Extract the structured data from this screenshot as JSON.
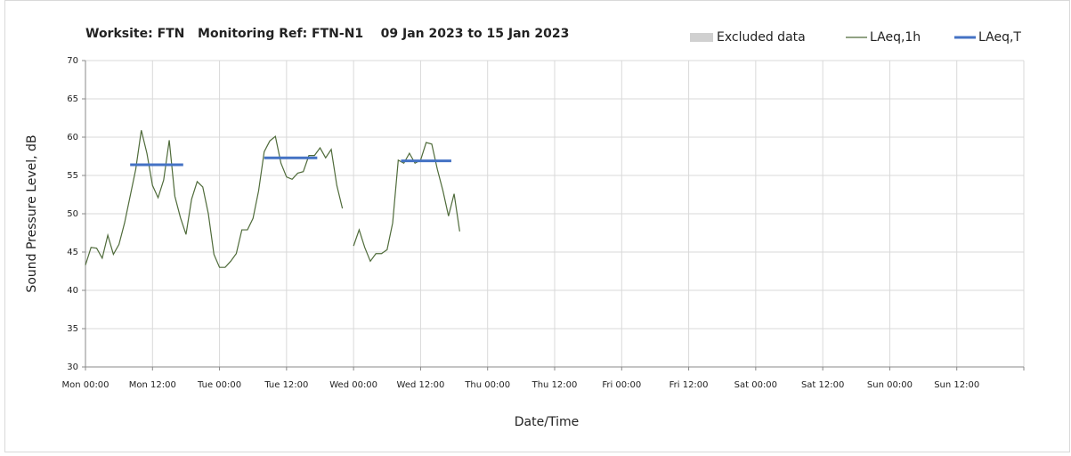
{
  "chart_data": {
    "type": "line",
    "title": "Worksite: FTN   Monitoring Ref: FTN-N1    09 Jan 2023 to 15 Jan 2023",
    "x_label": "Date/Time",
    "y_label": "Sound Pressure Level, dB",
    "xlim": [
      0,
      168
    ],
    "xticks": [
      {
        "value": 0,
        "label": "Mon 00:00"
      },
      {
        "value": 12,
        "label": "Mon 12:00"
      },
      {
        "value": 24,
        "label": "Tue 00:00"
      },
      {
        "value": 36,
        "label": "Tue 12:00"
      },
      {
        "value": 48,
        "label": "Wed 00:00"
      },
      {
        "value": 60,
        "label": "Wed 12:00"
      },
      {
        "value": 72,
        "label": "Thu 00:00"
      },
      {
        "value": 84,
        "label": "Thu 12:00"
      },
      {
        "value": 96,
        "label": "Fri 00:00"
      },
      {
        "value": 108,
        "label": "Fri 12:00"
      },
      {
        "value": 120,
        "label": "Sat 00:00"
      },
      {
        "value": 132,
        "label": "Sat 12:00"
      },
      {
        "value": 144,
        "label": "Sun 00:00"
      },
      {
        "value": 156,
        "label": "Sun 12:00"
      }
    ],
    "ylim": [
      30,
      70
    ],
    "yticks": [
      30,
      35,
      40,
      45,
      50,
      55,
      60,
      65,
      70
    ],
    "grid": true,
    "legend": "top-right",
    "excluded": {
      "name": "Excluded data",
      "color": "#d0d0d0"
    },
    "series": [
      {
        "name": "LAeq,1h",
        "color": "#4f6b3a",
        "x": [
          0,
          1,
          2,
          3,
          4,
          5,
          6,
          7,
          8,
          9,
          10,
          11,
          12,
          13,
          14,
          15,
          16,
          17,
          18,
          19,
          20,
          21,
          22,
          23,
          24,
          25,
          26,
          27,
          28,
          29,
          30,
          31,
          32,
          33,
          34,
          35,
          36,
          37,
          38,
          39,
          40,
          41,
          42,
          43,
          44,
          45,
          46,
          47,
          48,
          49,
          50,
          51,
          52,
          53,
          54,
          55,
          56,
          57,
          58,
          59,
          60,
          61,
          62,
          63,
          64,
          65,
          66,
          67
        ],
        "values": [
          43.3,
          45.6,
          45.5,
          44.2,
          47.2,
          44.7,
          46,
          48.8,
          52.3,
          55.8,
          60.9,
          57.9,
          53.7,
          52.1,
          54.4,
          59.6,
          52.3,
          49.5,
          47.3,
          51.9,
          54.2,
          53.5,
          50,
          44.7,
          43,
          43,
          43.8,
          44.8,
          47.9,
          47.9,
          49.4,
          53,
          58.1,
          59.5,
          60.1,
          56.6,
          54.8,
          54.5,
          55.3,
          55.5,
          57.6,
          57.6,
          58.6,
          57.3,
          58.4,
          53.7,
          50.7,
          null,
          45.8,
          47.9,
          45.6,
          43.8,
          44.8,
          44.8,
          45.3,
          48.8,
          57,
          56.6,
          57.9,
          56.6,
          57,
          59.3,
          59.1,
          55.8,
          53,
          49.7,
          52.6,
          47.7
        ]
      },
      {
        "name": "LAeq,T",
        "color": "#4472c4",
        "x_start": [
          8,
          32,
          56.5
        ],
        "x_end": [
          17.5,
          41.5,
          65.5
        ],
        "values": [
          56.4,
          57.3,
          56.9
        ]
      }
    ]
  }
}
